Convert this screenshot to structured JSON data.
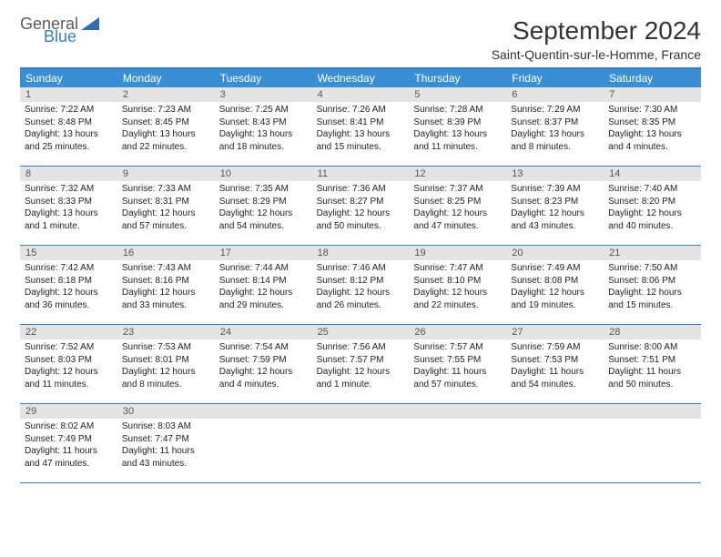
{
  "logo": {
    "general": "General",
    "blue": "Blue"
  },
  "title": "September 2024",
  "location": "Saint-Quentin-sur-le-Homme, France",
  "colors": {
    "header_bg": "#3a8fd4",
    "border": "#3a7fc4",
    "daynum_bg": "#e4e4e4",
    "text": "#222222",
    "logo_gray": "#5a5a5a",
    "logo_blue": "#3a7fc4",
    "background": "#ffffff"
  },
  "dow": [
    "Sunday",
    "Monday",
    "Tuesday",
    "Wednesday",
    "Thursday",
    "Friday",
    "Saturday"
  ],
  "weeks": [
    [
      {
        "n": "1",
        "sr": "Sunrise: 7:22 AM",
        "ss": "Sunset: 8:48 PM",
        "d1": "Daylight: 13 hours",
        "d2": "and 25 minutes."
      },
      {
        "n": "2",
        "sr": "Sunrise: 7:23 AM",
        "ss": "Sunset: 8:45 PM",
        "d1": "Daylight: 13 hours",
        "d2": "and 22 minutes."
      },
      {
        "n": "3",
        "sr": "Sunrise: 7:25 AM",
        "ss": "Sunset: 8:43 PM",
        "d1": "Daylight: 13 hours",
        "d2": "and 18 minutes."
      },
      {
        "n": "4",
        "sr": "Sunrise: 7:26 AM",
        "ss": "Sunset: 8:41 PM",
        "d1": "Daylight: 13 hours",
        "d2": "and 15 minutes."
      },
      {
        "n": "5",
        "sr": "Sunrise: 7:28 AM",
        "ss": "Sunset: 8:39 PM",
        "d1": "Daylight: 13 hours",
        "d2": "and 11 minutes."
      },
      {
        "n": "6",
        "sr": "Sunrise: 7:29 AM",
        "ss": "Sunset: 8:37 PM",
        "d1": "Daylight: 13 hours",
        "d2": "and 8 minutes."
      },
      {
        "n": "7",
        "sr": "Sunrise: 7:30 AM",
        "ss": "Sunset: 8:35 PM",
        "d1": "Daylight: 13 hours",
        "d2": "and 4 minutes."
      }
    ],
    [
      {
        "n": "8",
        "sr": "Sunrise: 7:32 AM",
        "ss": "Sunset: 8:33 PM",
        "d1": "Daylight: 13 hours",
        "d2": "and 1 minute."
      },
      {
        "n": "9",
        "sr": "Sunrise: 7:33 AM",
        "ss": "Sunset: 8:31 PM",
        "d1": "Daylight: 12 hours",
        "d2": "and 57 minutes."
      },
      {
        "n": "10",
        "sr": "Sunrise: 7:35 AM",
        "ss": "Sunset: 8:29 PM",
        "d1": "Daylight: 12 hours",
        "d2": "and 54 minutes."
      },
      {
        "n": "11",
        "sr": "Sunrise: 7:36 AM",
        "ss": "Sunset: 8:27 PM",
        "d1": "Daylight: 12 hours",
        "d2": "and 50 minutes."
      },
      {
        "n": "12",
        "sr": "Sunrise: 7:37 AM",
        "ss": "Sunset: 8:25 PM",
        "d1": "Daylight: 12 hours",
        "d2": "and 47 minutes."
      },
      {
        "n": "13",
        "sr": "Sunrise: 7:39 AM",
        "ss": "Sunset: 8:23 PM",
        "d1": "Daylight: 12 hours",
        "d2": "and 43 minutes."
      },
      {
        "n": "14",
        "sr": "Sunrise: 7:40 AM",
        "ss": "Sunset: 8:20 PM",
        "d1": "Daylight: 12 hours",
        "d2": "and 40 minutes."
      }
    ],
    [
      {
        "n": "15",
        "sr": "Sunrise: 7:42 AM",
        "ss": "Sunset: 8:18 PM",
        "d1": "Daylight: 12 hours",
        "d2": "and 36 minutes."
      },
      {
        "n": "16",
        "sr": "Sunrise: 7:43 AM",
        "ss": "Sunset: 8:16 PM",
        "d1": "Daylight: 12 hours",
        "d2": "and 33 minutes."
      },
      {
        "n": "17",
        "sr": "Sunrise: 7:44 AM",
        "ss": "Sunset: 8:14 PM",
        "d1": "Daylight: 12 hours",
        "d2": "and 29 minutes."
      },
      {
        "n": "18",
        "sr": "Sunrise: 7:46 AM",
        "ss": "Sunset: 8:12 PM",
        "d1": "Daylight: 12 hours",
        "d2": "and 26 minutes."
      },
      {
        "n": "19",
        "sr": "Sunrise: 7:47 AM",
        "ss": "Sunset: 8:10 PM",
        "d1": "Daylight: 12 hours",
        "d2": "and 22 minutes."
      },
      {
        "n": "20",
        "sr": "Sunrise: 7:49 AM",
        "ss": "Sunset: 8:08 PM",
        "d1": "Daylight: 12 hours",
        "d2": "and 19 minutes."
      },
      {
        "n": "21",
        "sr": "Sunrise: 7:50 AM",
        "ss": "Sunset: 8:06 PM",
        "d1": "Daylight: 12 hours",
        "d2": "and 15 minutes."
      }
    ],
    [
      {
        "n": "22",
        "sr": "Sunrise: 7:52 AM",
        "ss": "Sunset: 8:03 PM",
        "d1": "Daylight: 12 hours",
        "d2": "and 11 minutes."
      },
      {
        "n": "23",
        "sr": "Sunrise: 7:53 AM",
        "ss": "Sunset: 8:01 PM",
        "d1": "Daylight: 12 hours",
        "d2": "and 8 minutes."
      },
      {
        "n": "24",
        "sr": "Sunrise: 7:54 AM",
        "ss": "Sunset: 7:59 PM",
        "d1": "Daylight: 12 hours",
        "d2": "and 4 minutes."
      },
      {
        "n": "25",
        "sr": "Sunrise: 7:56 AM",
        "ss": "Sunset: 7:57 PM",
        "d1": "Daylight: 12 hours",
        "d2": "and 1 minute."
      },
      {
        "n": "26",
        "sr": "Sunrise: 7:57 AM",
        "ss": "Sunset: 7:55 PM",
        "d1": "Daylight: 11 hours",
        "d2": "and 57 minutes."
      },
      {
        "n": "27",
        "sr": "Sunrise: 7:59 AM",
        "ss": "Sunset: 7:53 PM",
        "d1": "Daylight: 11 hours",
        "d2": "and 54 minutes."
      },
      {
        "n": "28",
        "sr": "Sunrise: 8:00 AM",
        "ss": "Sunset: 7:51 PM",
        "d1": "Daylight: 11 hours",
        "d2": "and 50 minutes."
      }
    ],
    [
      {
        "n": "29",
        "sr": "Sunrise: 8:02 AM",
        "ss": "Sunset: 7:49 PM",
        "d1": "Daylight: 11 hours",
        "d2": "and 47 minutes."
      },
      {
        "n": "30",
        "sr": "Sunrise: 8:03 AM",
        "ss": "Sunset: 7:47 PM",
        "d1": "Daylight: 11 hours",
        "d2": "and 43 minutes."
      },
      {
        "n": "",
        "sr": "",
        "ss": "",
        "d1": "",
        "d2": ""
      },
      {
        "n": "",
        "sr": "",
        "ss": "",
        "d1": "",
        "d2": ""
      },
      {
        "n": "",
        "sr": "",
        "ss": "",
        "d1": "",
        "d2": ""
      },
      {
        "n": "",
        "sr": "",
        "ss": "",
        "d1": "",
        "d2": ""
      },
      {
        "n": "",
        "sr": "",
        "ss": "",
        "d1": "",
        "d2": ""
      }
    ]
  ]
}
